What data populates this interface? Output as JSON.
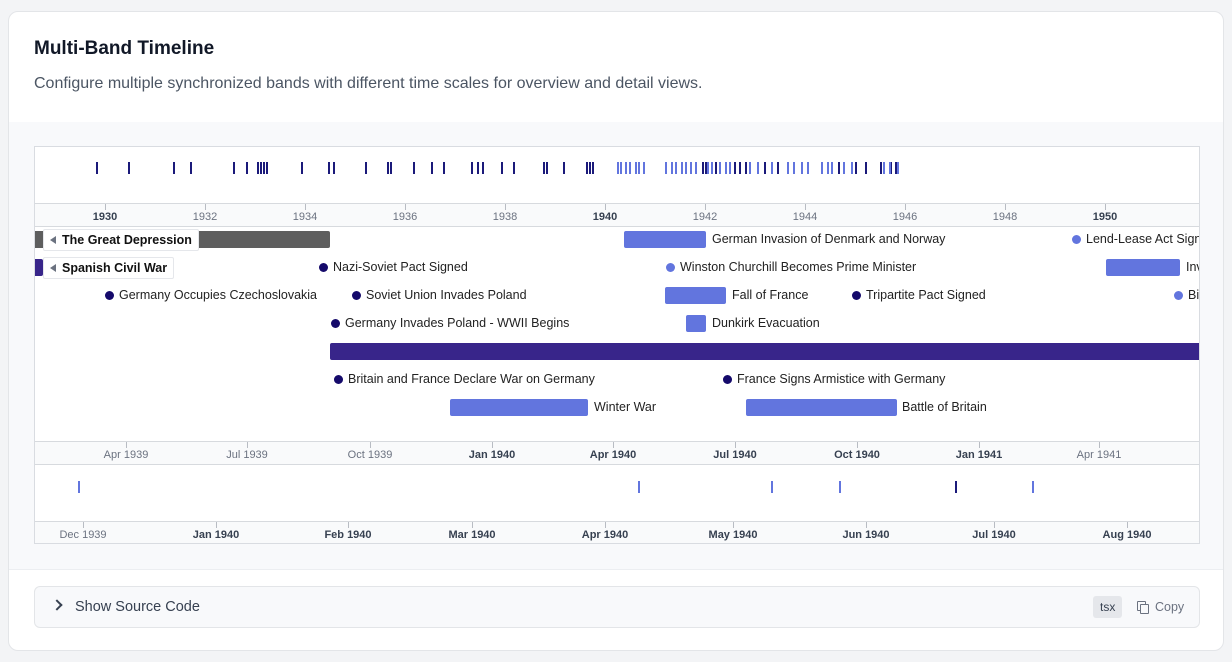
{
  "header": {
    "title": "Multi-Band Timeline",
    "description": "Configure multiple synchronized bands with different time scales for overview and detail views."
  },
  "colors": {
    "dark_navy": "#150a6b",
    "navy_tick": "#1b1a7a",
    "blue": "#6275de",
    "purple": "#38258a",
    "grey_bar": "#5e5e5e"
  },
  "overview_axis": {
    "ticks": [
      {
        "label": "1930",
        "major": true
      },
      {
        "label": "1932",
        "major": false
      },
      {
        "label": "1934",
        "major": false
      },
      {
        "label": "1936",
        "major": false
      },
      {
        "label": "1938",
        "major": false
      },
      {
        "label": "1940",
        "major": true
      },
      {
        "label": "1942",
        "major": false
      },
      {
        "label": "1944",
        "major": false
      },
      {
        "label": "1946",
        "major": false
      },
      {
        "label": "1948",
        "major": false
      },
      {
        "label": "1950",
        "major": true
      }
    ]
  },
  "main_events": [
    {
      "label": "The Great Depression",
      "kind": "bar",
      "color": "grey_bar",
      "sticky": true
    },
    {
      "label": "Spanish Civil War",
      "kind": "bar",
      "color": "purple",
      "sticky": true
    },
    {
      "label": "German Invasion of Denmark and Norway",
      "kind": "bar",
      "color": "blue"
    },
    {
      "label": "Lend-Lease Act Sign",
      "kind": "dot",
      "color": "blue"
    },
    {
      "label": "Nazi-Soviet Pact Signed",
      "kind": "dot",
      "color": "dark_navy"
    },
    {
      "label": "Winston Churchill Becomes Prime Minister",
      "kind": "dot",
      "color": "blue"
    },
    {
      "label": "Inv",
      "kind": "bar",
      "color": "blue"
    },
    {
      "label": "Germany Occupies Czechoslovakia",
      "kind": "dot",
      "color": "dark_navy"
    },
    {
      "label": "Soviet Union Invades Poland",
      "kind": "dot",
      "color": "dark_navy"
    },
    {
      "label": "Fall of France",
      "kind": "bar",
      "color": "blue"
    },
    {
      "label": "Tripartite Pact Signed",
      "kind": "dot",
      "color": "dark_navy"
    },
    {
      "label": "Bi",
      "kind": "dot",
      "color": "blue"
    },
    {
      "label": "Germany Invades Poland - WWII Begins",
      "kind": "dot",
      "color": "dark_navy"
    },
    {
      "label": "Dunkirk Evacuation",
      "kind": "bar",
      "color": "blue"
    },
    {
      "label": "",
      "kind": "bar",
      "color": "purple"
    },
    {
      "label": "Britain and France Declare War on Germany",
      "kind": "dot",
      "color": "dark_navy"
    },
    {
      "label": "France Signs Armistice with Germany",
      "kind": "dot",
      "color": "dark_navy"
    },
    {
      "label": "Winter War",
      "kind": "bar",
      "color": "blue"
    },
    {
      "label": "Battle of Britain",
      "kind": "bar",
      "color": "blue"
    }
  ],
  "main_axis": {
    "ticks": [
      {
        "label": "Apr 1939",
        "major": false
      },
      {
        "label": "Jul 1939",
        "major": false
      },
      {
        "label": "Oct 1939",
        "major": false
      },
      {
        "label": "Jan 1940",
        "major": true
      },
      {
        "label": "Apr 1940",
        "major": true
      },
      {
        "label": "Jul 1940",
        "major": true
      },
      {
        "label": "Oct 1940",
        "major": true
      },
      {
        "label": "Jan 1941",
        "major": true
      },
      {
        "label": "Apr 1941",
        "major": false
      }
    ]
  },
  "detail_axis": {
    "ticks": [
      {
        "label": "Dec 1939",
        "major": false
      },
      {
        "label": "Jan 1940",
        "major": true
      },
      {
        "label": "Feb 1940",
        "major": true
      },
      {
        "label": "Mar 1940",
        "major": true
      },
      {
        "label": "Apr 1940",
        "major": true
      },
      {
        "label": "May 1940",
        "major": true
      },
      {
        "label": "Jun 1940",
        "major": true
      },
      {
        "label": "Jul 1940",
        "major": true
      },
      {
        "label": "Aug 1940",
        "major": true
      }
    ]
  },
  "source_panel": {
    "toggle_label": "Show Source Code",
    "language": "tsx",
    "copy_label": "Copy"
  }
}
